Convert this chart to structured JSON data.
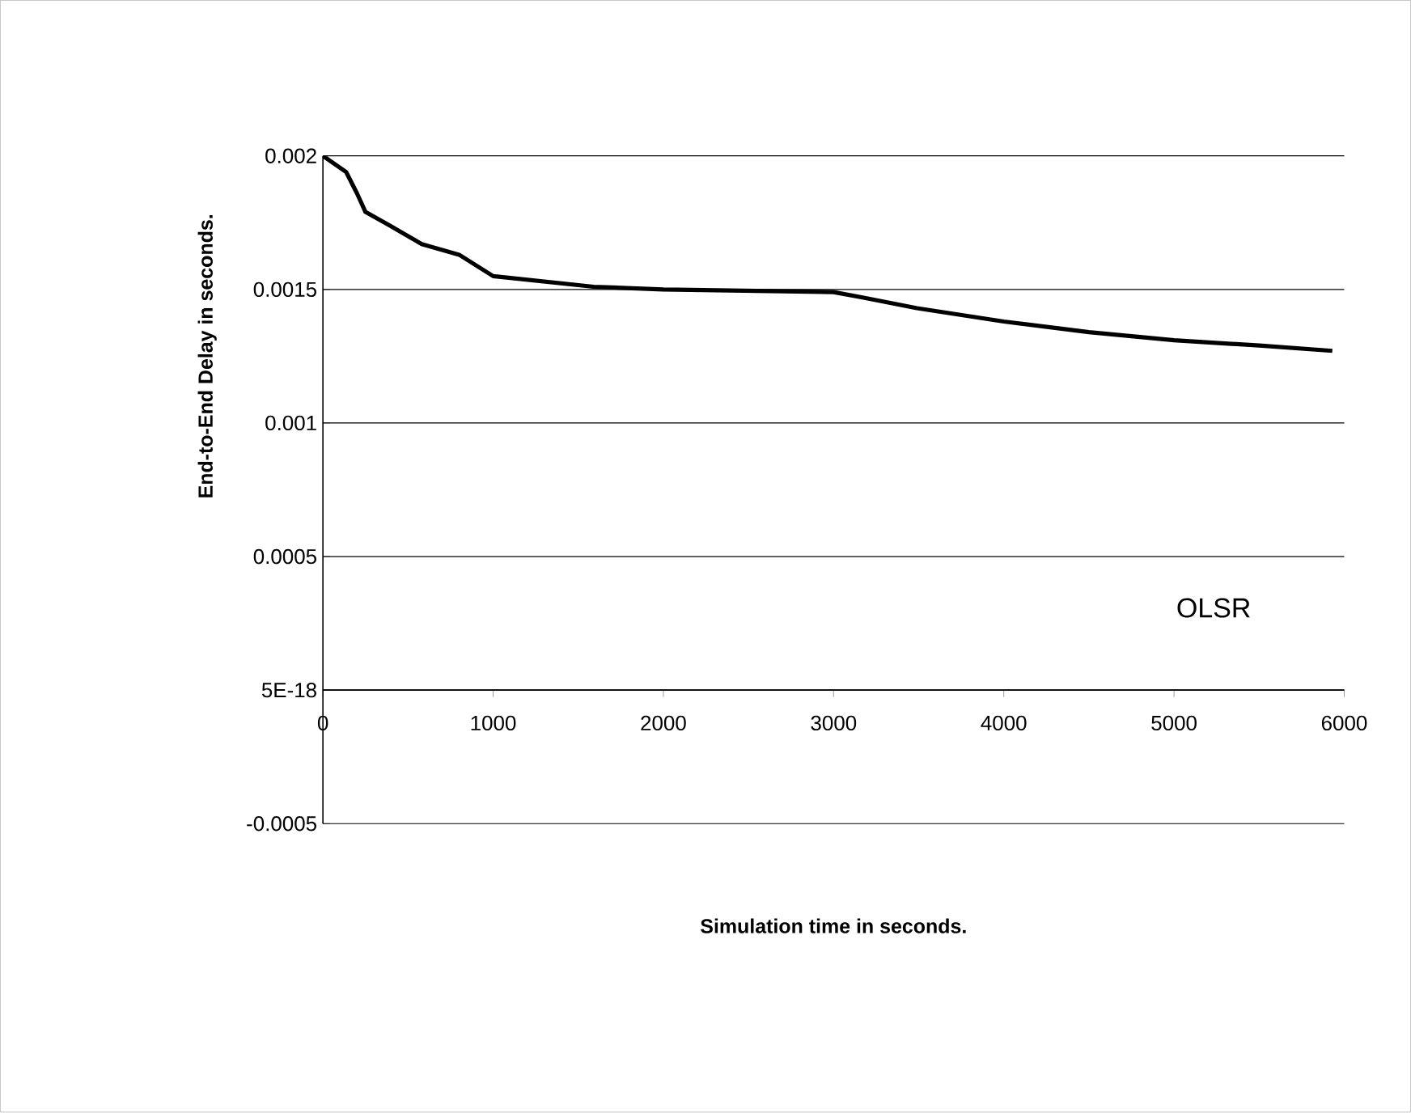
{
  "chart_data": {
    "type": "line",
    "xlabel": "Simulation time in seconds.",
    "ylabel": "End-to-End Delay in seconds.",
    "x": [
      0,
      136,
      200,
      250,
      390,
      580,
      800,
      1000,
      1590,
      2000,
      3000,
      3170,
      3490,
      4000,
      4500,
      5000,
      5500,
      5930
    ],
    "series": [
      {
        "name": "OLSR",
        "color": "#000000",
        "values": [
          0.002,
          0.00194,
          0.00186,
          0.00179,
          0.00174,
          0.00167,
          0.00163,
          0.00155,
          0.00151,
          0.0015,
          0.00149,
          0.00147,
          0.00143,
          0.00138,
          0.00134,
          0.00131,
          0.00129,
          0.00127
        ]
      }
    ],
    "xlim": [
      0,
      6000
    ],
    "ylim": [
      -0.0005,
      0.002
    ],
    "xticks": [
      0,
      1000,
      2000,
      3000,
      4000,
      5000,
      6000
    ],
    "yticks": [
      -0.0005,
      {
        "value": 5e-18,
        "label": "5E-18"
      },
      0.0005,
      0.001,
      0.0015,
      0.002
    ],
    "grid": "y",
    "marker": "none",
    "line_style": "solid"
  }
}
